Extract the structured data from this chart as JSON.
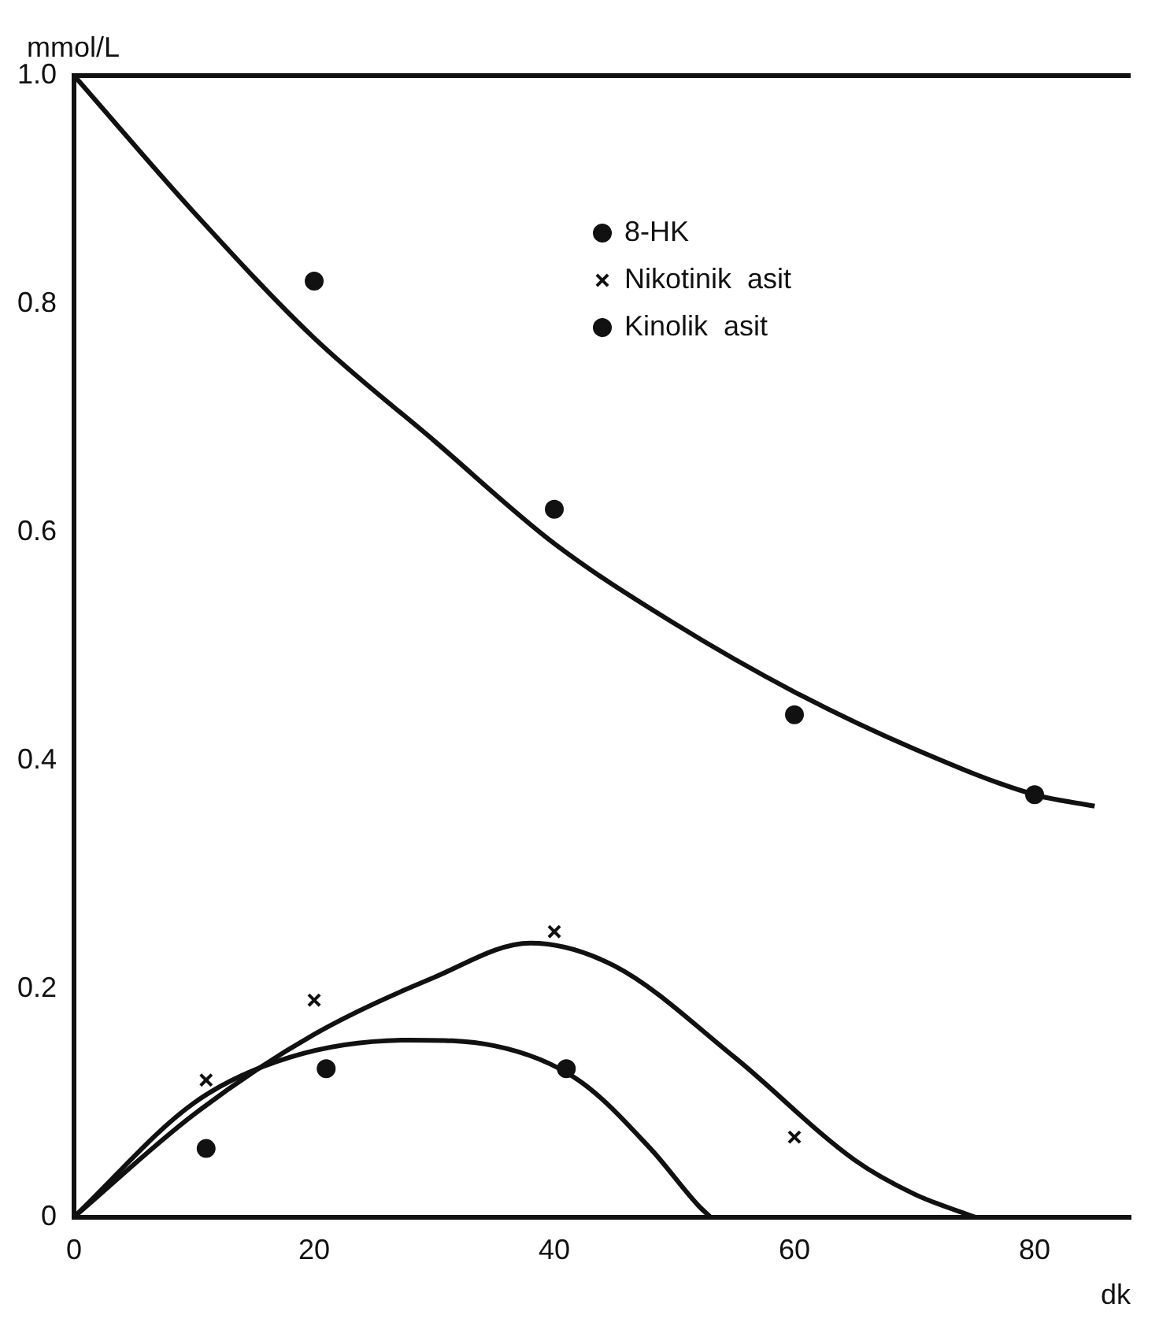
{
  "chart_data": {
    "type": "scatter",
    "xlabel": "dk",
    "ylabel": "mmol/L",
    "xlim": [
      0,
      88
    ],
    "ylim": [
      0,
      1.0
    ],
    "xticks": [
      0,
      20,
      40,
      60,
      80
    ],
    "yticks": [
      0,
      0.2,
      0.4,
      0.6,
      0.8,
      {
        "value": 1.0,
        "label": "1.0"
      }
    ],
    "grid": false,
    "legend": "top right",
    "series": [
      {
        "name": "8-HK",
        "marker": "circle",
        "color": "#111111",
        "x": [
          20,
          40,
          60,
          80
        ],
        "values": [
          0.82,
          0.62,
          0.44,
          0.37
        ]
      },
      {
        "name": "Nikotinik  asit",
        "marker": "cross",
        "color": "#111111",
        "x": [
          11,
          20,
          40,
          60
        ],
        "values": [
          0.12,
          0.19,
          0.25,
          0.07
        ]
      },
      {
        "name": "Kinolik  asit",
        "marker": "circle",
        "color": "#111111",
        "x": [
          11,
          21,
          41
        ],
        "values": [
          0.06,
          0.13,
          0.13
        ]
      },
      {
        "type": "line",
        "color": "#111111",
        "x": [
          0,
          10,
          20,
          30,
          40,
          50,
          60,
          70,
          80,
          85
        ],
        "values": [
          1.0,
          0.88,
          0.77,
          0.68,
          0.59,
          0.52,
          0.46,
          0.41,
          0.37,
          0.36
        ]
      },
      {
        "type": "line",
        "color": "#111111",
        "x": [
          0,
          10,
          20,
          30,
          38,
          45,
          55,
          65,
          70,
          75
        ],
        "values": [
          0,
          0.09,
          0.16,
          0.21,
          0.24,
          0.22,
          0.14,
          0.05,
          0.02,
          0
        ]
      },
      {
        "type": "line",
        "color": "#111111",
        "x": [
          0,
          10,
          18,
          28,
          35,
          42,
          48,
          52,
          53
        ],
        "values": [
          0,
          0.1,
          0.14,
          0.155,
          0.15,
          0.12,
          0.06,
          0.01,
          0
        ]
      }
    ]
  }
}
